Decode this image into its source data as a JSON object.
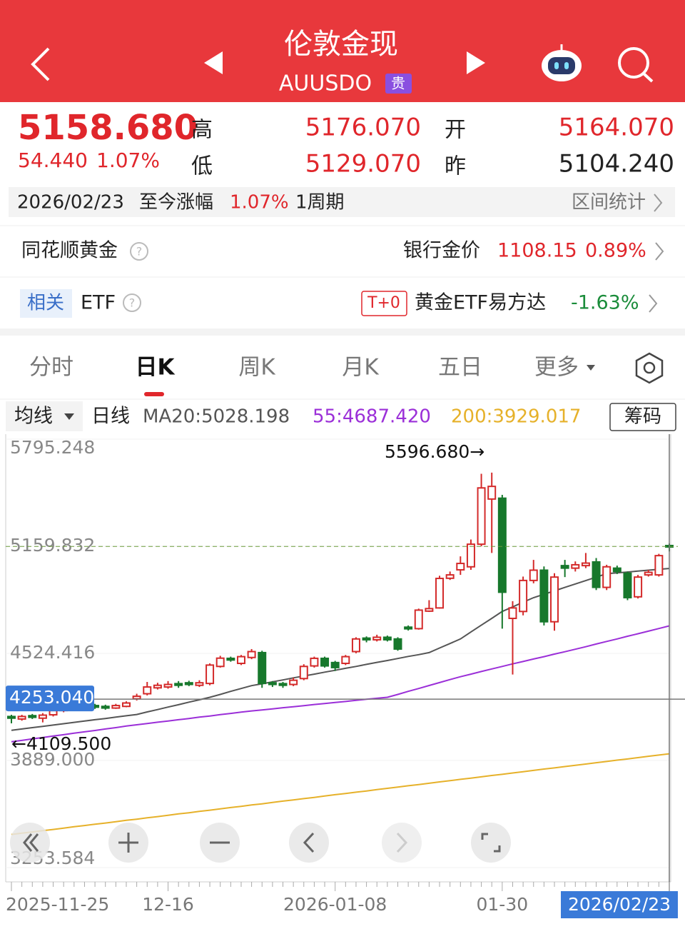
{
  "header": {
    "title": "伦敦金现",
    "code": "AUUSDO",
    "badge": "贵"
  },
  "quote": {
    "price": "5158.680",
    "change": "54.440",
    "change_pct": "1.07%",
    "high_label": "高",
    "high": "5176.070",
    "open_label": "开",
    "open": "5164.070",
    "low_label": "低",
    "low": "5129.070",
    "prev_label": "昨",
    "prev": "5104.240"
  },
  "range_bar": {
    "date": "2026/02/23",
    "label": "至今涨幅",
    "pct": "1.07%",
    "period": "1周期",
    "stats": "区间统计"
  },
  "gold_row": {
    "name": "同花顺黄金",
    "bank_label": "银行金价",
    "bank_price": "1108.15",
    "bank_pct": "0.89%"
  },
  "etf_row": {
    "tag": "相关",
    "name": "ETF",
    "tplus": "T+0",
    "fund": "黄金ETF易方达",
    "pct": "-1.63%"
  },
  "tabs": [
    "分时",
    "日K",
    "周K",
    "月K",
    "五日",
    "更多"
  ],
  "ma_bar": {
    "selector": "均线",
    "period": "日线",
    "ma20": "MA20:5028.198",
    "ma55": "55:4687.420",
    "ma200": "200:3929.017",
    "chips": "筹码"
  },
  "chart_data": {
    "type": "candlestick",
    "categories": [
      "2025-11-25",
      null,
      null,
      null,
      null,
      null,
      null,
      null,
      null,
      null,
      null,
      null,
      null,
      null,
      null,
      "12-16",
      null,
      null,
      null,
      null,
      null,
      null,
      null,
      null,
      null,
      null,
      null,
      null,
      null,
      null,
      null,
      "2026-01-08",
      null,
      null,
      null,
      null,
      null,
      null,
      null,
      null,
      null,
      null,
      null,
      null,
      null,
      null,
      null,
      "01-30",
      null,
      null,
      null,
      null,
      null,
      null,
      null,
      null,
      null,
      null,
      null,
      null,
      null,
      null,
      null,
      "2026/02/23"
    ],
    "open": [
      4150,
      4135,
      4155,
      4140,
      4160,
      4185,
      4210,
      4200,
      4215,
      4210,
      4200,
      4210,
      4255,
      4285,
      4320,
      4325,
      4345,
      4350,
      4335,
      4346,
      4447,
      4495,
      4465,
      4500,
      4529,
      4350,
      4345,
      4340,
      4375,
      4450,
      4495,
      4470,
      4465,
      4535,
      4615,
      4605,
      4620,
      4610,
      4680,
      4671,
      4775,
      4794,
      4970,
      5020,
      5038,
      5172,
      5440,
      5445,
      4732,
      4773,
      4957,
      5018,
      4712,
      5045,
      5030,
      5045,
      5067,
      4916,
      5030,
      5000,
      4860,
      4990,
      4990,
      5164.07
    ],
    "high": [
      4160,
      4160,
      4165,
      4170,
      4195,
      4215,
      4220,
      4235,
      4225,
      4220,
      4225,
      4240,
      4285,
      4355,
      4350,
      4360,
      4360,
      4362,
      4365,
      4465,
      4510,
      4505,
      4515,
      4550,
      4540,
      4360,
      4355,
      4380,
      4460,
      4505,
      4505,
      4480,
      4515,
      4620,
      4625,
      4635,
      4630,
      4620,
      4690,
      4790,
      4840,
      4985,
      5010,
      5100,
      5200,
      5590,
      5596.68,
      5465,
      4834,
      4980,
      5079,
      5040,
      5000,
      5079,
      5070,
      5120,
      5090,
      5050,
      5045,
      5010,
      4990,
      5020,
      5115,
      5176.07
    ],
    "low": [
      4109.5,
      4125,
      4135,
      4115,
      4150,
      4175,
      4190,
      4195,
      4195,
      4190,
      4195,
      4205,
      4245,
      4275,
      4310,
      4315,
      4320,
      4330,
      4325,
      4335,
      4440,
      4475,
      4455,
      4490,
      4320,
      4325,
      4320,
      4330,
      4365,
      4440,
      4440,
      4420,
      4455,
      4525,
      4590,
      4595,
      4595,
      4540,
      4660,
      4665,
      4770,
      4790,
      4960,
      4990,
      5020,
      5160,
      5120,
      4671,
      4399,
      4750,
      4940,
      4690,
      4659,
      4977,
      5010,
      5030,
      4900,
      4900,
      4995,
      4840,
      4850,
      4980,
      4980,
      5129.07
    ],
    "close": [
      4140,
      4150,
      4145,
      4158,
      4185,
      4205,
      4200,
      4225,
      4205,
      4200,
      4215,
      4230,
      4270,
      4325,
      4335,
      4340,
      4335,
      4340,
      4350,
      4455,
      4496,
      4485,
      4505,
      4535,
      4346,
      4340,
      4335,
      4365,
      4447,
      4495,
      4450,
      4440,
      4505,
      4610,
      4605,
      4620,
      4605,
      4550,
      4670,
      4781,
      4790,
      4969,
      4990,
      5058,
      5172,
      5506,
      5515,
      4887,
      4794,
      4957,
      5018,
      4712,
      4977,
      5030,
      5050,
      5060,
      4916,
      5038,
      5010,
      4855,
      4977,
      5005,
      5104.24,
      5158.68
    ],
    "up_color": "#d42a2a",
    "down_color": "#17782c",
    "series": [
      {
        "color": "#555555",
        "values": [
          4068,
          4076,
          4084,
          4091,
          4099,
          4107,
          4115,
          4123,
          4131,
          4138,
          4146,
          4154,
          4162,
          4177,
          4191,
          4206,
          4220,
          4235,
          4249,
          4264,
          4281,
          4299,
          4316,
          4333,
          4344,
          4356,
          4367,
          4379,
          4390,
          4401,
          4413,
          4424,
          4436,
          4447,
          4459,
          4471,
          4482,
          4494,
          4506,
          4517,
          4529,
          4556,
          4583,
          4610,
          4651,
          4692,
          4732,
          4773,
          4800,
          4828,
          4855,
          4875,
          4895,
          4916,
          4936,
          4956,
          4977,
          4997,
          5002,
          5007,
          5013,
          5018,
          5023,
          5028.198
        ]
      },
      {
        "color": "#9b2fd8",
        "values": [
          4000,
          4008,
          4017,
          4025,
          4034,
          4042,
          4051,
          4059,
          4067,
          4076,
          4084,
          4093,
          4101,
          4108,
          4116,
          4123,
          4131,
          4138,
          4146,
          4153,
          4161,
          4168,
          4176,
          4183,
          4189,
          4195,
          4202,
          4208,
          4214,
          4221,
          4227,
          4233,
          4239,
          4246,
          4252,
          4258,
          4264,
          4281,
          4299,
          4316,
          4334,
          4351,
          4369,
          4386,
          4401,
          4417,
          4432,
          4447,
          4462,
          4476,
          4491,
          4505,
          4520,
          4534,
          4549,
          4564,
          4580,
          4595,
          4610,
          4626,
          4641,
          4656,
          4672,
          4687.42
        ]
      },
      {
        "color": "#e6b12a",
        "values": [
          3450,
          3458,
          3465,
          3473,
          3480,
          3488,
          3496,
          3503,
          3511,
          3518,
          3526,
          3534,
          3541,
          3549,
          3556,
          3564,
          3572,
          3579,
          3587,
          3594,
          3602,
          3610,
          3617,
          3625,
          3632,
          3640,
          3648,
          3655,
          3663,
          3670,
          3678,
          3686,
          3693,
          3701,
          3708,
          3716,
          3724,
          3731,
          3739,
          3746,
          3754,
          3762,
          3769,
          3777,
          3784,
          3792,
          3800,
          3807,
          3815,
          3822,
          3830,
          3838,
          3845,
          3853,
          3860,
          3868,
          3876,
          3883,
          3891,
          3898,
          3906,
          3914,
          3921,
          3929.017
        ]
      }
    ],
    "ylim": [
      3253.584,
      5795.248
    ],
    "yticks": [
      5795.248,
      5159.832,
      4524.416,
      {
        "value": 3889,
        "label": "3889.000"
      },
      3253.584
    ],
    "grid": true,
    "last_price": 5158.68,
    "crosshair": {
      "value": 4253.04,
      "label": "4253.040"
    },
    "max_label": "5596.680→",
    "min_label": "←4109.500"
  }
}
